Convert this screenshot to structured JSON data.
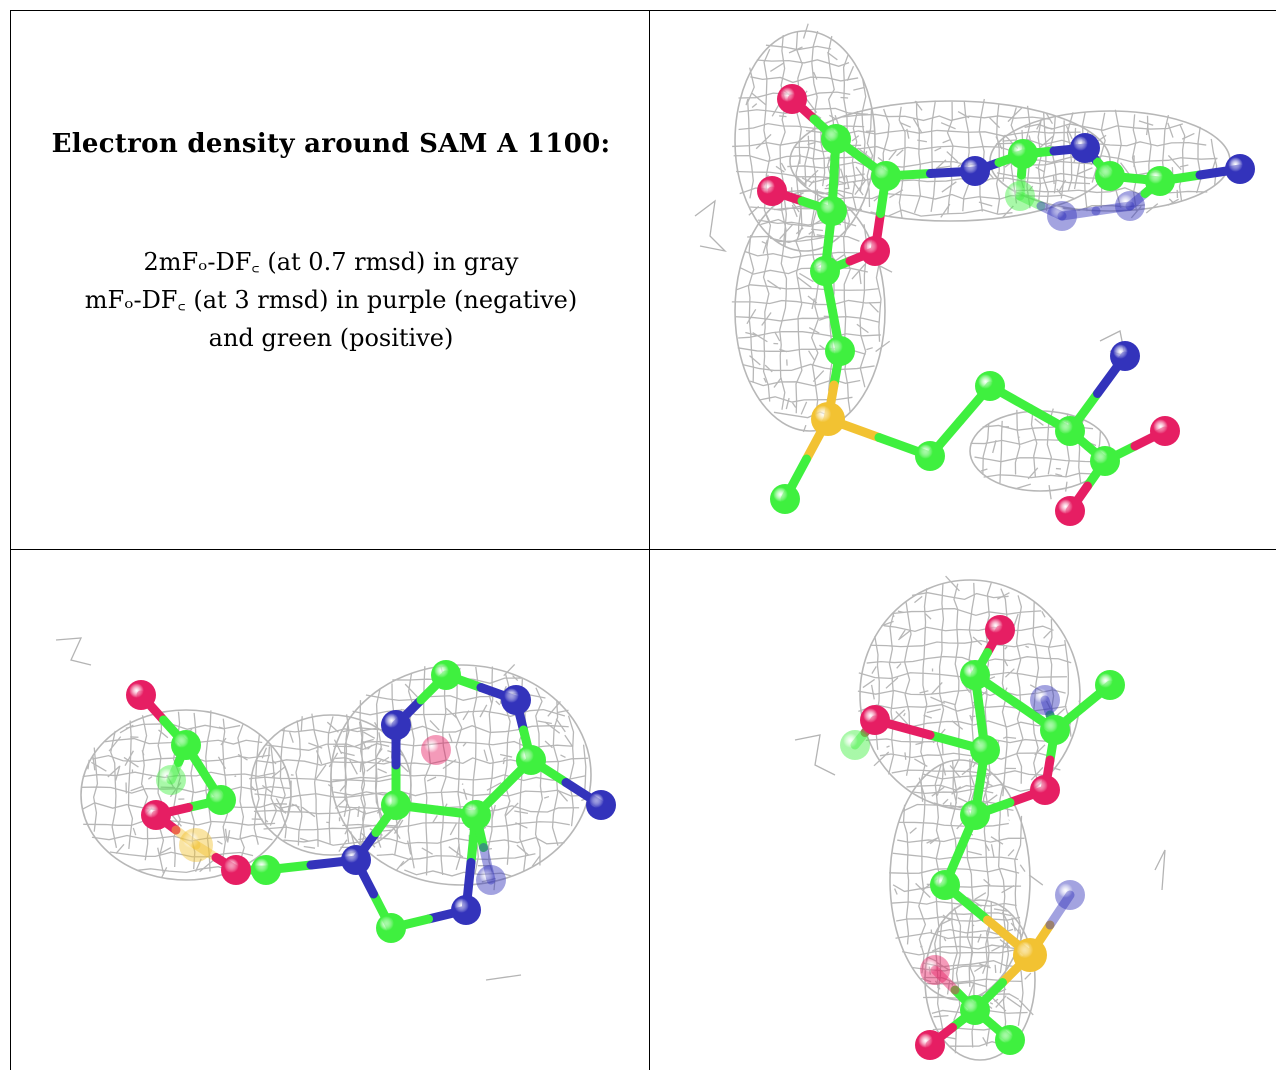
{
  "title": "Electron density around SAM A 1100:",
  "legend": {
    "line1": "2mFₒ-DF꜀ (at 0.7 rmsd) in gray",
    "line2": "mFₒ-DF꜀ (at 3 rmsd) in purple (negative)",
    "line3": "and green (positive)"
  },
  "colors": {
    "carbon": "#3ff03f",
    "nitrogen": "#3333bb",
    "oxygen": "#e61e63",
    "sulfur": "#f2c232",
    "mesh": "#b4b4b4"
  },
  "panels": [
    {
      "view": "top-right",
      "icon": "molecule-density-view"
    },
    {
      "view": "bottom-left",
      "icon": "molecule-density-view"
    },
    {
      "view": "bottom-right",
      "icon": "molecule-density-view"
    }
  ]
}
